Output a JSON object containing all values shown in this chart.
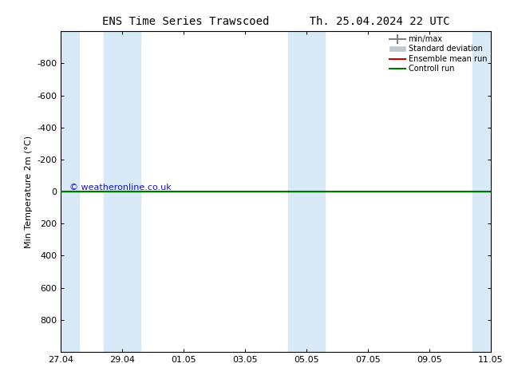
{
  "title_left": "ENS Time Series Trawscoed",
  "title_right": "Th. 25.04.2024 22 UTC",
  "ylabel": "Min Temperature 2m (°C)",
  "ylim": [
    -1000,
    1000
  ],
  "yticks": [
    -800,
    -600,
    -400,
    -200,
    0,
    200,
    400,
    600,
    800
  ],
  "xtick_labels": [
    "27.04",
    "29.04",
    "01.05",
    "03.05",
    "05.05",
    "07.05",
    "09.05",
    "11.05"
  ],
  "xtick_positions": [
    0,
    2,
    4,
    6,
    8,
    10,
    12,
    14
  ],
  "blue_bands": [
    [
      0.0,
      0.6
    ],
    [
      1.4,
      2.6
    ],
    [
      7.4,
      8.6
    ],
    [
      13.4,
      14.0
    ]
  ],
  "green_line_y": 0,
  "green_line_color": "#007700",
  "red_line_y": 0,
  "red_line_color": "#cc0000",
  "band_color": "#d8eaf8",
  "minmax_color": "#909090",
  "stddev_color": "#c0c8d0",
  "watermark": "© weatheronline.co.uk",
  "watermark_color": "#0000bb",
  "legend_labels": [
    "min/max",
    "Standard deviation",
    "Ensemble mean run",
    "Controll run"
  ],
  "legend_line_colors": [
    "#808080",
    "#b0b8c0",
    "#cc0000",
    "#007700"
  ],
  "background_color": "#ffffff",
  "xmin": 0,
  "xmax": 14
}
